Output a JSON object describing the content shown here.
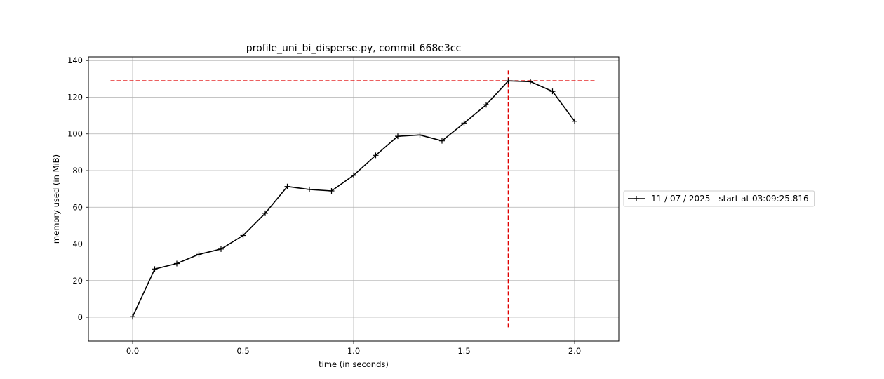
{
  "chart_data": {
    "type": "line",
    "title": "profile_uni_bi_disperse.py, commit 668e3cc",
    "xlabel": "time (in seconds)",
    "ylabel": "memory used (in MiB)",
    "xlim": [
      -0.2,
      2.2
    ],
    "ylim": [
      -13,
      142
    ],
    "x_ticks": [
      0.0,
      0.5,
      1.0,
      1.5,
      2.0
    ],
    "x_tick_labels": [
      "0.0",
      "0.5",
      "1.0",
      "1.5",
      "2.0"
    ],
    "y_ticks": [
      0,
      20,
      40,
      60,
      80,
      100,
      120,
      140
    ],
    "y_tick_labels": [
      "0",
      "20",
      "40",
      "60",
      "80",
      "100",
      "120",
      "140"
    ],
    "grid": true,
    "legend_placement": "right-outside",
    "series": [
      {
        "name": "11 / 07 / 2025 - start at 03:09:25.816",
        "color": "#000000",
        "marker": "plus",
        "x": [
          0.0,
          0.1,
          0.2,
          0.3,
          0.4,
          0.5,
          0.6,
          0.7,
          0.8,
          0.9,
          1.0,
          1.1,
          1.2,
          1.3,
          1.4,
          1.5,
          1.6,
          1.7,
          1.8,
          1.9,
          2.0
        ],
        "y": [
          0.3,
          26.3,
          29.3,
          34.3,
          37.2,
          44.6,
          56.7,
          71.3,
          69.7,
          68.9,
          77.4,
          88.3,
          98.7,
          99.4,
          96.2,
          105.9,
          115.9,
          128.9,
          128.5,
          123.2,
          106.9
        ]
      }
    ],
    "reference_lines": [
      {
        "orientation": "horizontal",
        "y": 128.9,
        "x_range": [
          -0.1,
          2.1
        ],
        "color": "#e00000",
        "style": "dashed"
      },
      {
        "orientation": "vertical",
        "x": 1.7,
        "y_range": [
          -5.5,
          135.5
        ],
        "color": "#e00000",
        "style": "dashed"
      }
    ]
  }
}
